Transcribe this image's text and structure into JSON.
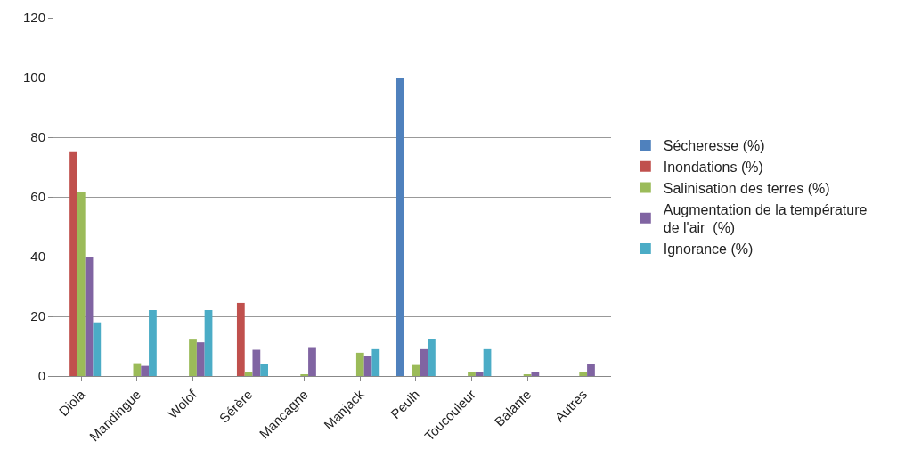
{
  "chart_data": {
    "type": "bar",
    "categories": [
      "Diola",
      "Mandingue",
      "Wolof",
      "Sérère",
      "Mancagne",
      "Manjack",
      "Peulh",
      "Toucouleur",
      "Balante",
      "Autres"
    ],
    "series": [
      {
        "name": "Sécheresse (%)",
        "color": "#4f81bd",
        "values": [
          null,
          null,
          null,
          null,
          null,
          null,
          100,
          null,
          null,
          null
        ]
      },
      {
        "name": "Inondations (%)",
        "color": "#c0504d",
        "values": [
          75,
          null,
          null,
          24.5,
          null,
          null,
          null,
          null,
          null,
          null
        ]
      },
      {
        "name": "Salinisation des terres (%)",
        "color": "#9bbb59",
        "values": [
          61.5,
          4.3,
          12.2,
          1.2,
          0.4,
          7.8,
          3.7,
          1.3,
          0.4,
          1.3
        ]
      },
      {
        "name": "Augmentation de la température de l'air  (%)",
        "color": "#8064a2",
        "values": [
          40,
          3.4,
          11.3,
          8.8,
          9.4,
          6.8,
          9,
          1.3,
          1.3,
          4.1
        ]
      },
      {
        "name": "Ignorance (%)",
        "color": "#4bacc6",
        "values": [
          18,
          22.1,
          22.1,
          4,
          null,
          9,
          12.4,
          9,
          null,
          null
        ]
      }
    ],
    "ylim": [
      0,
      120
    ],
    "yticks": [
      0,
      20,
      40,
      60,
      80,
      100,
      120
    ],
    "grid": "y",
    "legend": "right"
  }
}
